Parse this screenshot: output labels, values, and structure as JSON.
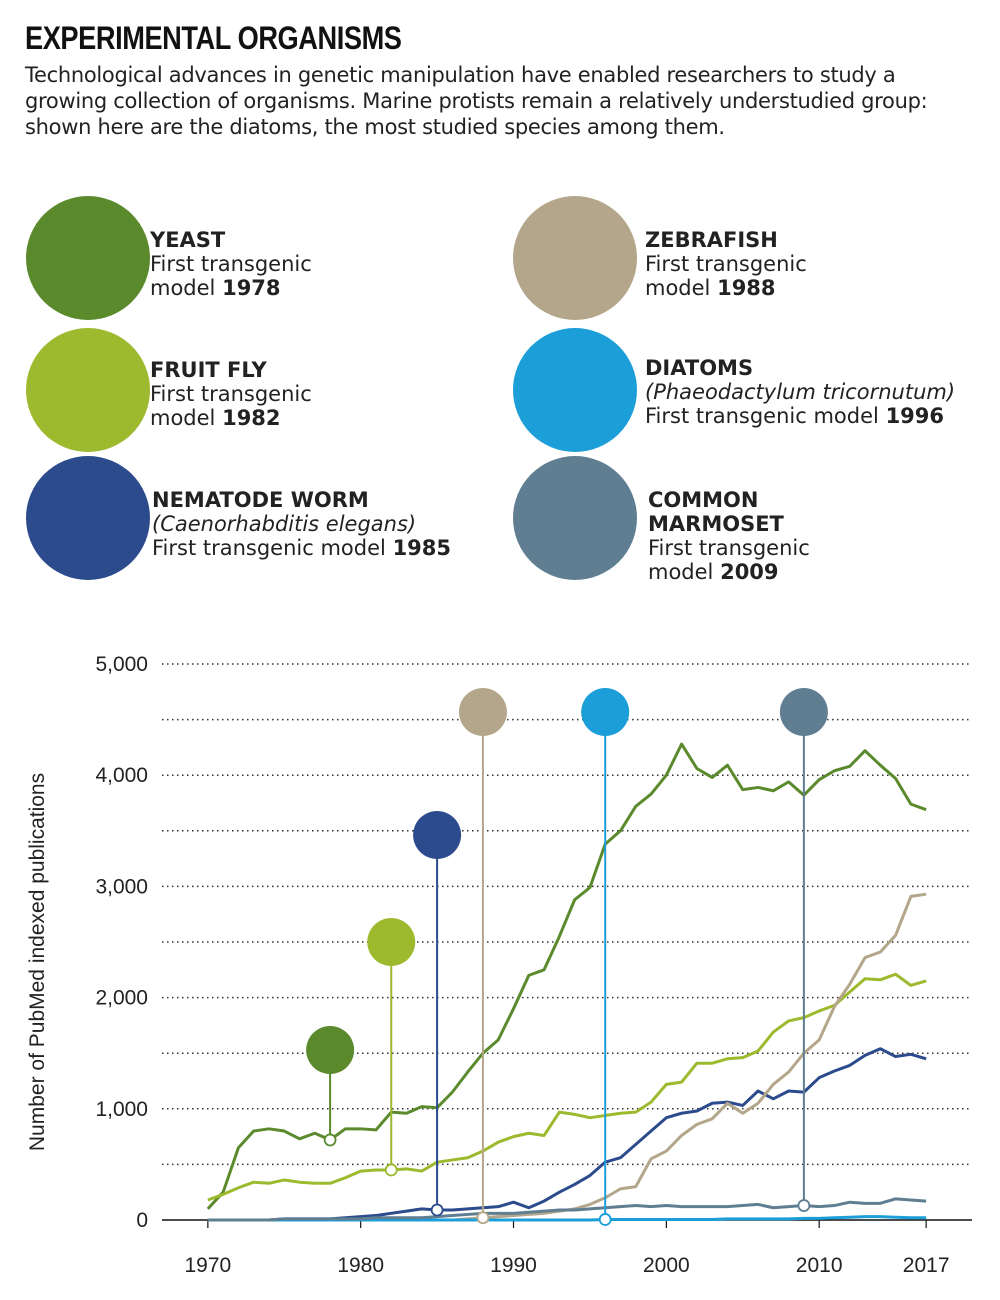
{
  "header": {
    "title": "EXPERIMENTAL ORGANISMS",
    "description": "Technological advances in genetic manipulation have enabled researchers to study a growing collection of organisms. Marine protists remain a relatively understudied group: shown here are the diatoms, the most studied species among them."
  },
  "chart_data": {
    "type": "line",
    "ylabel": "Number of PubMed indexed publications",
    "x": [
      1970,
      1971,
      1972,
      1973,
      1974,
      1975,
      1976,
      1977,
      1978,
      1979,
      1980,
      1981,
      1982,
      1983,
      1984,
      1985,
      1986,
      1987,
      1988,
      1989,
      1990,
      1991,
      1992,
      1993,
      1994,
      1995,
      1996,
      1997,
      1998,
      1999,
      2000,
      2001,
      2002,
      2003,
      2004,
      2005,
      2006,
      2007,
      2008,
      2009,
      2010,
      2011,
      2012,
      2013,
      2014,
      2015,
      2016,
      2017
    ],
    "xlim": [
      1967,
      2020
    ],
    "xticks": [
      1970,
      1980,
      1990,
      2000,
      2010,
      2017
    ],
    "ylim": [
      0,
      5000
    ],
    "yticks": [
      0,
      {
        "value": 1000,
        "label": "1,000"
      },
      {
        "value": 2000,
        "label": "2,000"
      },
      {
        "value": 3000,
        "label": "3,000"
      },
      {
        "value": 4000,
        "label": "4,000"
      },
      {
        "value": 5000,
        "label": "5,000"
      }
    ],
    "yminorticks": [
      500,
      1500,
      2500,
      3500,
      4500
    ],
    "grid": true,
    "series": [
      {
        "name": "YEAST",
        "first": "First transgenic model",
        "year": 1978,
        "color": "#5b8a2d",
        "values": [
          100,
          250,
          650,
          800,
          820,
          800,
          730,
          780,
          720,
          820,
          820,
          810,
          970,
          960,
          1020,
          1010,
          1150,
          1330,
          1500,
          1620,
          1900,
          2200,
          2250,
          2550,
          2880,
          2990,
          3380,
          3500,
          3720,
          3830,
          4000,
          4280,
          4060,
          3980,
          4090,
          3870,
          3890,
          3860,
          3940,
          3820,
          3960,
          4040,
          4080,
          4220,
          4090,
          3970,
          3740,
          3690
        ]
      },
      {
        "name": "FRUIT FLY",
        "first": "First transgenic model",
        "year": 1982,
        "color": "#9dba2e",
        "values": [
          180,
          230,
          290,
          340,
          330,
          360,
          340,
          330,
          330,
          380,
          440,
          450,
          450,
          460,
          440,
          520,
          540,
          560,
          620,
          700,
          750,
          780,
          760,
          970,
          950,
          920,
          940,
          960,
          970,
          1060,
          1220,
          1240,
          1410,
          1410,
          1450,
          1460,
          1520,
          1690,
          1790,
          1820,
          1880,
          1930,
          2050,
          2170,
          2160,
          2210,
          2110,
          2150
        ]
      },
      {
        "name": "NEMATODE WORM",
        "subtitle": "(Caenorhabditis elegans)",
        "first": "First transgenic model",
        "year": 1985,
        "color": "#2c4b8d",
        "values": [
          0,
          0,
          0,
          0,
          0,
          10,
          10,
          10,
          10,
          20,
          30,
          40,
          60,
          80,
          100,
          90,
          90,
          100,
          110,
          120,
          160,
          110,
          170,
          250,
          320,
          400,
          520,
          560,
          680,
          800,
          920,
          960,
          980,
          1050,
          1060,
          1030,
          1160,
          1090,
          1160,
          1150,
          1280,
          1340,
          1390,
          1480,
          1540,
          1470,
          1490,
          1450
        ]
      },
      {
        "name": "ZEBRAFISH",
        "first": "First transgenic model",
        "year": 1988,
        "color": "#b4a68a",
        "values": [
          0,
          0,
          0,
          0,
          0,
          0,
          0,
          0,
          0,
          0,
          0,
          0,
          0,
          0,
          0,
          0,
          0,
          10,
          20,
          30,
          40,
          50,
          60,
          80,
          100,
          140,
          200,
          280,
          300,
          550,
          620,
          760,
          860,
          910,
          1050,
          960,
          1050,
          1220,
          1330,
          1500,
          1620,
          1920,
          2120,
          2360,
          2410,
          2560,
          2910,
          2930
        ]
      },
      {
        "name": "DIATOMS",
        "subtitle": "(Phaeodactylum tricornutum)",
        "first": "First transgenic model",
        "year": 1996,
        "color": "#1c9fd9",
        "values": [
          0,
          0,
          0,
          0,
          0,
          0,
          0,
          0,
          0,
          0,
          0,
          0,
          0,
          0,
          0,
          0,
          0,
          0,
          0,
          0,
          0,
          0,
          0,
          0,
          0,
          0,
          5,
          5,
          5,
          5,
          5,
          5,
          5,
          5,
          10,
          10,
          10,
          10,
          10,
          15,
          15,
          20,
          25,
          30,
          30,
          25,
          20,
          20
        ]
      },
      {
        "name": "COMMON MARMOSET",
        "first": "First transgenic model",
        "year": 2009,
        "color": "#5f7e92",
        "values": [
          0,
          0,
          0,
          0,
          0,
          10,
          10,
          10,
          10,
          10,
          10,
          20,
          20,
          20,
          20,
          30,
          40,
          50,
          60,
          60,
          60,
          70,
          80,
          90,
          90,
          100,
          110,
          120,
          130,
          120,
          130,
          120,
          120,
          120,
          120,
          130,
          140,
          110,
          120,
          130,
          120,
          130,
          160,
          150,
          150,
          190,
          180,
          170
        ]
      }
    ]
  }
}
